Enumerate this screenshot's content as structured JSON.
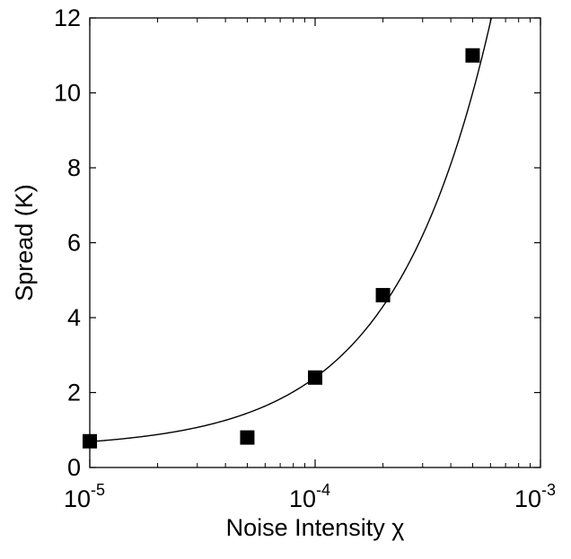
{
  "chart_data": {
    "type": "scatter",
    "xlabel": "Noise Intensity χ",
    "ylabel": "Spread (K)",
    "xscale": "log",
    "xlim": [
      1e-05,
      0.001
    ],
    "ylim": [
      0,
      12
    ],
    "x_ticks": [
      {
        "base": "10",
        "exp": "-5",
        "value": 1e-05
      },
      {
        "base": "10",
        "exp": "-4",
        "value": 0.0001
      },
      {
        "base": "10",
        "exp": "-3",
        "value": 0.001
      }
    ],
    "y_ticks": [
      {
        "label": "0",
        "value": 0
      },
      {
        "label": "2",
        "value": 2
      },
      {
        "label": "4",
        "value": 4
      },
      {
        "label": "6",
        "value": 6
      },
      {
        "label": "8",
        "value": 8
      },
      {
        "label": "10",
        "value": 10
      },
      {
        "label": "12",
        "value": 12
      }
    ],
    "points": [
      {
        "x": 1e-05,
        "y": 0.7
      },
      {
        "x": 5e-05,
        "y": 0.8
      },
      {
        "x": 0.0001,
        "y": 2.4
      },
      {
        "x": 0.0002,
        "y": 4.6
      },
      {
        "x": 0.0005,
        "y": 11.0
      }
    ],
    "fit_curve": {
      "description": "linear fit",
      "intercept": 0.5,
      "slope_per_unit_x": 19000
    },
    "grid": false,
    "marker": "square",
    "marker_color": "#000000",
    "line_color": "#000000"
  }
}
